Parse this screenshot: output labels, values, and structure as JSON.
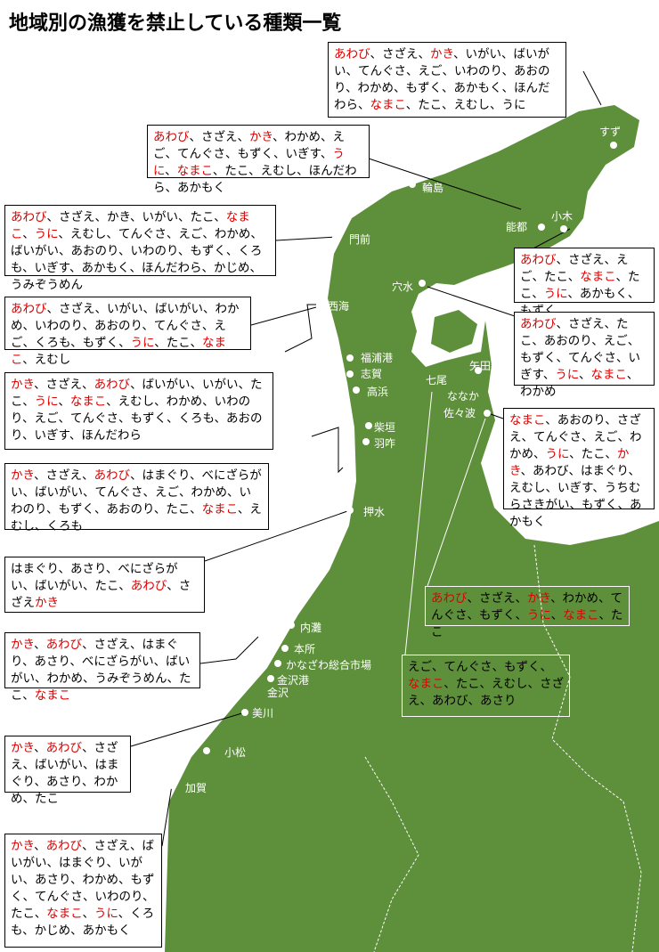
{
  "title": "地域別の漁獲を禁止している種類一覧",
  "places": [
    "すず",
    "輪島",
    "能都",
    "小木",
    "門前",
    "穴水",
    "西海",
    "福浦港",
    "志賀",
    "高浜",
    "柴垣",
    "羽咋",
    "矢田新",
    "七尾",
    "ななか",
    "佐々波",
    "押水",
    "内灘",
    "本所",
    "かなざわ総合市場",
    "金沢港",
    "金沢",
    "美川",
    "小松",
    "加賀"
  ],
  "boxes": [
    {
      "items": [
        {
          "text": "あわび",
          "color": "#e00000"
        },
        "、さざえ、",
        {
          "text": "かき",
          "color": "#e00000"
        },
        "、いがい、ばいがい、てんぐさ、えご、いわのり、あおのり、わかめ、もずく、あかもく、ほんだわら、",
        {
          "text": "なまこ",
          "color": "#e00000"
        },
        "、たこ、えむし、うに"
      ]
    },
    {
      "items": [
        {
          "text": "あわび",
          "color": "#e00000"
        },
        "、さざえ、",
        {
          "text": "かき",
          "color": "#e00000"
        },
        "、わかめ、えご、てんぐさ、もずく、いぎす、",
        {
          "text": "うに",
          "color": "#e00000"
        },
        "、",
        {
          "text": "なまこ",
          "color": "#e00000"
        },
        "、たこ、えむし、ほんだわら、あかもく"
      ]
    },
    {
      "items": [
        {
          "text": "あわび",
          "color": "#e00000"
        },
        "、さざえ、かき、いがい、たこ、",
        {
          "text": "なまこ",
          "color": "#e00000"
        },
        "、",
        {
          "text": "うに",
          "color": "#e00000"
        },
        "、えむし、てんぐさ、えご、わかめ、ばいがい、あおのり、いわのり、もずく、くろも、いぎす、あかもく、ほんだわら、かじめ、うみぞうめん"
      ]
    },
    {
      "items": [
        {
          "text": "あわび",
          "color": "#e00000"
        },
        "、さざえ、いがい、ばいがい、わかめ、いわのり、あおのり、てんぐさ、えご、くろも、もずく、",
        {
          "text": "うに",
          "color": "#e00000"
        },
        "、たこ、",
        {
          "text": "なまこ",
          "color": "#e00000"
        },
        "、えむし"
      ]
    },
    {
      "items": [
        {
          "text": "かき",
          "color": "#e00000"
        },
        "、さざえ、",
        {
          "text": "あわび",
          "color": "#e00000"
        },
        "、ばいがい、いがい、たこ、",
        {
          "text": "うに",
          "color": "#e00000"
        },
        "、",
        {
          "text": "なまこ",
          "color": "#e00000"
        },
        "、えむし、わかめ、いわのり、えご、てんぐさ、もずく、くろも、あおのり、いぎす、ほんだわら"
      ]
    },
    {
      "items": [
        {
          "text": "かき",
          "color": "#e00000"
        },
        "、さざえ、",
        {
          "text": "あわび",
          "color": "#e00000"
        },
        "、はまぐり、べにざらがい、ばいがい、てんぐさ、えご、わかめ、いわのり、もずく、あおのり、たこ、",
        {
          "text": "なまこ",
          "color": "#e00000"
        },
        "、えむし、くろも"
      ]
    },
    {
      "items": [
        "はまぐり、あさり、べにざらがい、ばいがい、たこ、",
        {
          "text": "あわび",
          "color": "#e00000"
        },
        "、さざえ",
        {
          "text": "かき",
          "color": "#e00000"
        }
      ]
    },
    {
      "items": [
        {
          "text": "かき",
          "color": "#e00000"
        },
        "、",
        {
          "text": "あわび",
          "color": "#e00000"
        },
        "、さざえ、はまぐり、あさり、べにざらがい、ばいがい、わかめ、うみぞうめん、たこ、",
        {
          "text": "なまこ",
          "color": "#e00000"
        }
      ]
    },
    {
      "items": [
        {
          "text": "かき",
          "color": "#e00000"
        },
        "、",
        {
          "text": "あわび",
          "color": "#e00000"
        },
        "、さざえ、ばいがい、はまぐり、あさり、わかめ、たこ"
      ]
    },
    {
      "items": [
        {
          "text": "かき",
          "color": "#e00000"
        },
        "、",
        {
          "text": "あわび",
          "color": "#e00000"
        },
        "、さざえ、ばいがい、はまぐり、いがい、あさり、わかめ、もずく、てんぐさ、いわのり、たこ、",
        {
          "text": "なまこ",
          "color": "#e00000"
        },
        "、",
        {
          "text": "うに",
          "color": "#e00000"
        },
        "、くろも、かじめ、あかもく"
      ]
    },
    {
      "items": [
        {
          "text": "あわび",
          "color": "#e00000"
        },
        "、さざえ、えご、たこ、",
        {
          "text": "なまこ",
          "color": "#e00000"
        },
        "、たこ、",
        {
          "text": "うに",
          "color": "#e00000"
        },
        "、あかもく、もずく"
      ]
    },
    {
      "items": [
        {
          "text": "あわび",
          "color": "#e00000"
        },
        "、さざえ、たこ、あおのり、えご、もずく、てんぐさ、いぎす、",
        {
          "text": "うに",
          "color": "#e00000"
        },
        "、",
        {
          "text": "なまこ",
          "color": "#e00000"
        },
        "、わかめ"
      ]
    },
    {
      "items": [
        {
          "text": "なまこ",
          "color": "#e00000"
        },
        "、あおのり、さざえ、てんぐさ、えご、わかめ、",
        {
          "text": "うに",
          "color": "#e00000"
        },
        "、たこ、",
        {
          "text": "かき",
          "color": "#e00000"
        },
        "、あわび、はまぐり、えむし、いぎす、うちむらさきがい、もずく、あかもく"
      ]
    },
    {
      "items": [
        {
          "text": "あわび",
          "color": "#e00000"
        },
        "、さざえ、",
        {
          "text": "かき",
          "color": "#e00000"
        },
        "、わかめ、てんぐさ、もずく、",
        {
          "text": "うに",
          "color": "#e00000"
        },
        "、",
        {
          "text": "なまこ",
          "color": "#e00000"
        },
        "、たこ"
      ]
    },
    {
      "items": [
        "えご、てんぐさ、もずく、",
        {
          "text": "なまこ",
          "color": "#e00000"
        },
        "、たこ、えむし、さざえ、あわび、あさり"
      ]
    }
  ]
}
